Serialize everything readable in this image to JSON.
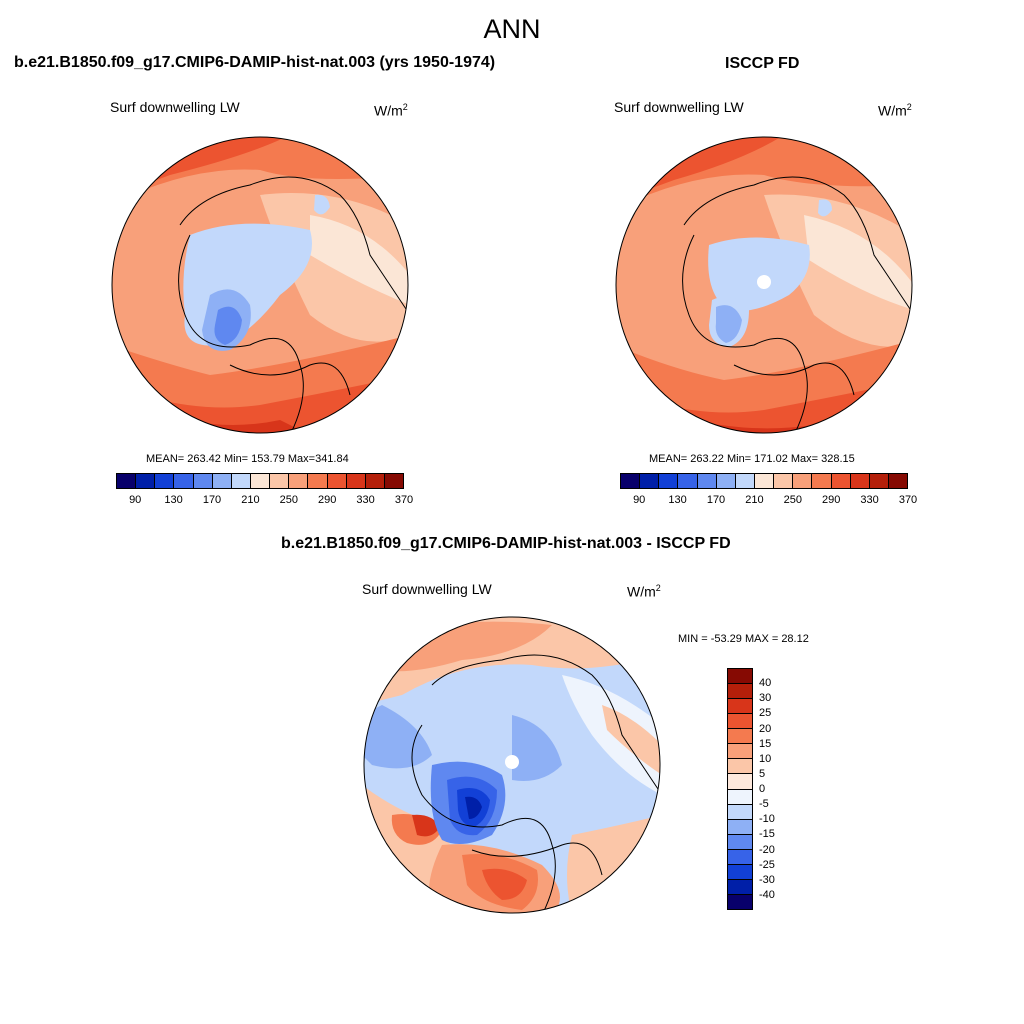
{
  "title": "ANN",
  "panels": [
    {
      "title": "b.e21.B1850.f09_g17.CMIP6-DAMIP-hist-nat.003 (yrs 1950-1974)",
      "variable": "Surf downwelling LW",
      "units_base": "W/m",
      "units_sup": "2",
      "stats": "MEAN= 263.42  Min= 153.79  Max=341.84"
    },
    {
      "title": "ISCCP FD",
      "variable": "Surf downwelling LW",
      "units_base": "W/m",
      "units_sup": "2",
      "stats": "MEAN= 263.22  Min= 171.02  Max= 328.15"
    },
    {
      "title": "b.e21.B1850.f09_g17.CMIP6-DAMIP-hist-nat.003 - ISCCP FD",
      "variable": "Surf downwelling LW",
      "units_base": "W/m",
      "units_sup": "2",
      "stats": "MIN = -53.29 MAX =  28.12"
    }
  ],
  "colorbar_abs": {
    "colors": [
      "#08006b",
      "#001fa8",
      "#1240d6",
      "#3763e8",
      "#5f88f0",
      "#8eb0f5",
      "#c2d8fb",
      "#fbe6d6",
      "#fbc6a8",
      "#f8a07a",
      "#f47a4f",
      "#ec5430",
      "#d8351a",
      "#b41f0a",
      "#860a03"
    ],
    "labels": [
      "90",
      "130",
      "170",
      "210",
      "250",
      "290",
      "330",
      "370"
    ]
  },
  "colorbar_diff": {
    "colors": [
      "#860a03",
      "#b41f0a",
      "#d8351a",
      "#ec5430",
      "#f47a4f",
      "#f8a07a",
      "#fbc6a8",
      "#fde8dc",
      "#eef4fd",
      "#c2d8fb",
      "#8eb0f5",
      "#5f88f0",
      "#3763e8",
      "#1240d6",
      "#001fa8",
      "#08006b"
    ],
    "labels": [
      "40",
      "30",
      "25",
      "20",
      "15",
      "10",
      "5",
      "0",
      "-5",
      "-10",
      "-15",
      "-20",
      "-25",
      "-30",
      "-40"
    ]
  }
}
